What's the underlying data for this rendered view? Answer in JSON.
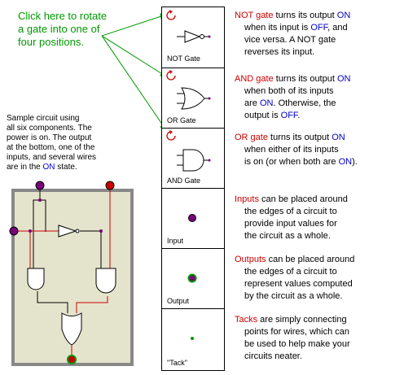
{
  "callout": {
    "lines": [
      "Click here to rotate",
      "a gate into one of",
      "four positions."
    ]
  },
  "sample_description": {
    "lines": [
      "Sample circuit using",
      "all six components.  The",
      "power is on.  The output",
      "at the bottom, one of the",
      "inputs, and several wires",
      "are in the "
    ],
    "on_word": "ON",
    "end": " state."
  },
  "palette": {
    "items": [
      {
        "label": "NOT Gate",
        "rotatable": true,
        "icon": "not-gate-icon"
      },
      {
        "label": "OR Gate",
        "rotatable": true,
        "icon": "or-gate-icon"
      },
      {
        "label": "AND Gate",
        "rotatable": true,
        "icon": "and-gate-icon"
      },
      {
        "label": "Input",
        "rotatable": false,
        "icon": "input-node-icon"
      },
      {
        "label": "Output",
        "rotatable": false,
        "icon": "output-node-icon"
      },
      {
        "label": "\"Tack\"",
        "rotatable": false,
        "icon": "tack-icon"
      }
    ]
  },
  "descriptions": {
    "not": {
      "name": "NOT gate",
      "l1": " turns its output ",
      "on": "ON",
      "l2a": "when its input is ",
      "off": "OFF",
      "l2b": ", and",
      "l3": "vice versa.  A NOT gate",
      "l4": "reverses its input."
    },
    "and": {
      "name": "AND gate",
      "l1": " turns its output ",
      "on": "ON",
      "l2": "when both of its inputs",
      "l3a": "are ",
      "on2": "ON",
      "l3b": ".  Otherwise, the",
      "l4a": "output is ",
      "off": "OFF",
      "l4b": "."
    },
    "or": {
      "name": "OR gate",
      "l1": " turns its output ",
      "on": "ON",
      "l2": "when either of its inputs",
      "l3a": "is on (or when both are ",
      "on2": "ON",
      "l3b": ")."
    },
    "inputs": {
      "name": "Inputs",
      "l1": " can be placed around",
      "l2": "the edges of a circuit to",
      "l3": "provide input values for",
      "l4": "the circuit as a whole."
    },
    "outputs": {
      "name": "Outputs",
      "l1": " can be placed around",
      "l2": "the edges of a circuit to",
      "l3": "represent values computed",
      "l4": "by the circuit as a whole."
    },
    "tacks": {
      "name": "Tacks",
      "l1": " are simply connecting",
      "l2": "points for wires, which can",
      "l3": "be used to help make your",
      "l4": "circuits neater."
    }
  },
  "colors": {
    "on_wire": "#cc0000",
    "off_wire": "#000000",
    "arrow": "#009900",
    "circuit_bg": "#e4e4cc",
    "text_red": "#cc0000",
    "text_blue": "#0000cc"
  }
}
